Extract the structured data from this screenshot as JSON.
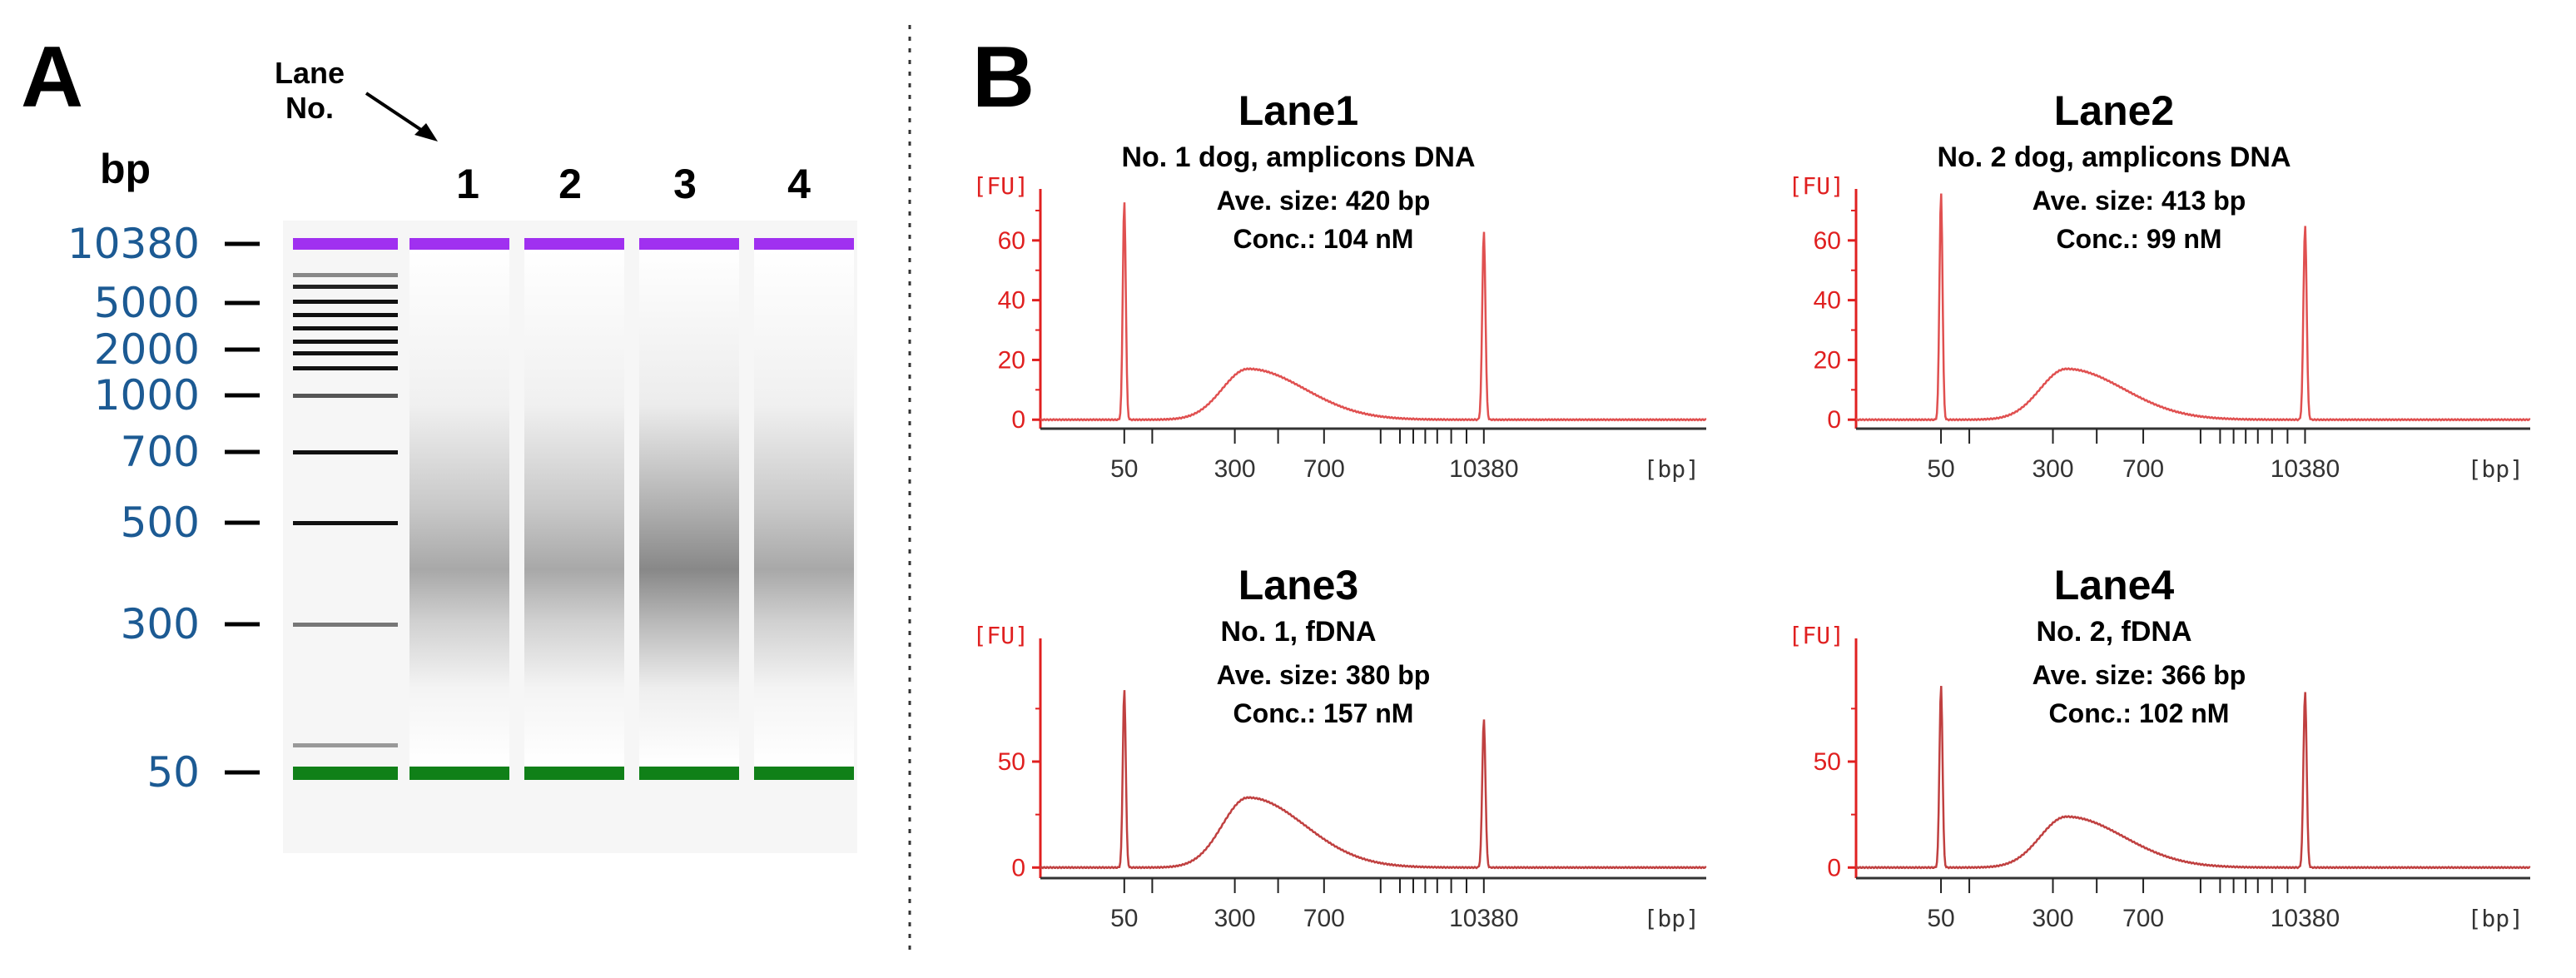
{
  "panel_a": {
    "letter": "A",
    "lane_header": [
      "Lane",
      "No."
    ],
    "bp_label": "bp",
    "lanes": [
      "1",
      "2",
      "3",
      "4"
    ],
    "ladder_labels": [
      "10380",
      "5000",
      "2000",
      "1000",
      "700",
      "500",
      "300",
      "50"
    ],
    "colors": {
      "upper_marker": "#a030f0",
      "lower_marker": "#108018",
      "ladder": "#111111"
    }
  },
  "panel_b": {
    "letter": "B"
  },
  "chart_data": [
    {
      "type": "line",
      "title": "Lane1",
      "subtitle": "No. 1 dog, amplicons DNA",
      "ave_size": "Ave. size: 420 bp",
      "conc": "Conc.: 104 nM",
      "ylabel": "[FU]",
      "xlabel": "[bp]",
      "yticks": [
        0,
        20,
        40,
        60
      ],
      "ylim": [
        -3,
        75
      ],
      "xtick_labels": [
        "50",
        "300",
        "700",
        "10380"
      ],
      "lower_marker_height": 73,
      "upper_marker_height": 63,
      "smear_peak_height": 17,
      "smear_peak_size_bp": 300,
      "color": "#e05050"
    },
    {
      "type": "line",
      "title": "Lane2",
      "subtitle": "No. 2 dog, amplicons DNA",
      "ave_size": "Ave. size: 413 bp",
      "conc": "Conc.: 99 nM",
      "ylabel": "[FU]",
      "xlabel": "[bp]",
      "yticks": [
        0,
        20,
        40,
        60
      ],
      "ylim": [
        -3,
        75
      ],
      "xtick_labels": [
        "50",
        "300",
        "700",
        "10380"
      ],
      "lower_marker_height": 76,
      "upper_marker_height": 65,
      "smear_peak_height": 17,
      "smear_peak_size_bp": 300,
      "color": "#e05050"
    },
    {
      "type": "line",
      "title": "Lane3",
      "subtitle": "No. 1, fDNA",
      "ave_size": "Ave. size: 380 bp",
      "conc": "Conc.: 157 nM",
      "ylabel": "[FU]",
      "xlabel": "[bp]",
      "yticks": [
        0,
        50
      ],
      "ylim": [
        -5,
        105
      ],
      "xtick_labels": [
        "50",
        "300",
        "700",
        "10380"
      ],
      "lower_marker_height": 84,
      "upper_marker_height": 70,
      "smear_peak_height": 33,
      "smear_peak_size_bp": 300,
      "color": "#c04040"
    },
    {
      "type": "line",
      "title": "Lane4",
      "subtitle": "No. 2, fDNA",
      "ave_size": "Ave. size: 366 bp",
      "conc": "Conc.: 102 nM",
      "ylabel": "[FU]",
      "xlabel": "[bp]",
      "yticks": [
        0,
        50
      ],
      "ylim": [
        -5,
        105
      ],
      "xtick_labels": [
        "50",
        "300",
        "700",
        "10380"
      ],
      "lower_marker_height": 86,
      "upper_marker_height": 83,
      "smear_peak_height": 24,
      "smear_peak_size_bp": 300,
      "color": "#c04040"
    }
  ]
}
